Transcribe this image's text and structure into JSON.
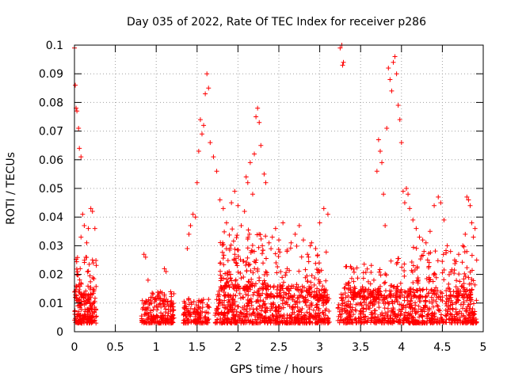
{
  "chart_data": {
    "type": "scatter",
    "title": "Day 035 of 2022, Rate Of TEC Index for receiver p286",
    "xlabel": "GPS time / hours",
    "ylabel": "ROTI / TECUs",
    "xlim": [
      0,
      5
    ],
    "ylim": [
      0,
      0.1
    ],
    "xticks": [
      0,
      0.5,
      1,
      1.5,
      2,
      2.5,
      3,
      3.5,
      4,
      4.5,
      5
    ],
    "xtick_labels": [
      "0",
      "0.5",
      "1",
      "1.5",
      "2",
      "2.5",
      "3",
      "3.5",
      "4",
      "4.5",
      "5"
    ],
    "yticks": [
      0,
      0.01,
      0.02,
      0.03,
      0.04,
      0.05,
      0.06,
      0.07,
      0.08,
      0.09,
      0.1
    ],
    "ytick_labels": [
      "0",
      "0.01",
      "0.02",
      "0.03",
      "0.04",
      "0.05",
      "0.06",
      "0.07",
      "0.08",
      "0.09",
      "0.1"
    ],
    "grid": true,
    "marker": "+",
    "color": "#ff0000",
    "series": [
      {
        "name": "p286",
        "points": [
          [
            0.0,
            0.099
          ],
          [
            0.01,
            0.086
          ],
          [
            0.02,
            0.078
          ],
          [
            0.03,
            0.077
          ],
          [
            0.05,
            0.071
          ],
          [
            0.06,
            0.064
          ],
          [
            0.08,
            0.061
          ],
          [
            0.01,
            0.012
          ],
          [
            0.02,
            0.016
          ],
          [
            0.03,
            0.02
          ],
          [
            0.04,
            0.009
          ],
          [
            0.05,
            0.007
          ],
          [
            0.06,
            0.011
          ],
          [
            0.07,
            0.022
          ],
          [
            0.08,
            0.033
          ],
          [
            0.1,
            0.041
          ],
          [
            0.12,
            0.037
          ],
          [
            0.14,
            0.026
          ],
          [
            0.15,
            0.031
          ],
          [
            0.17,
            0.036
          ],
          [
            0.2,
            0.043
          ],
          [
            0.22,
            0.042
          ],
          [
            0.23,
            0.024
          ],
          [
            0.25,
            0.036
          ],
          [
            0.12,
            0.006
          ],
          [
            0.16,
            0.005
          ],
          [
            0.2,
            0.009
          ],
          [
            0.24,
            0.007
          ],
          [
            0.85,
            0.027
          ],
          [
            0.87,
            0.026
          ],
          [
            0.9,
            0.018
          ],
          [
            0.95,
            0.012
          ],
          [
            1.0,
            0.011
          ],
          [
            1.05,
            0.014
          ],
          [
            1.1,
            0.022
          ],
          [
            1.12,
            0.021
          ],
          [
            1.15,
            0.009
          ],
          [
            1.2,
            0.006
          ],
          [
            1.38,
            0.029
          ],
          [
            1.4,
            0.034
          ],
          [
            1.42,
            0.037
          ],
          [
            1.45,
            0.041
          ],
          [
            1.48,
            0.04
          ],
          [
            1.5,
            0.052
          ],
          [
            1.52,
            0.063
          ],
          [
            1.54,
            0.074
          ],
          [
            1.56,
            0.069
          ],
          [
            1.58,
            0.072
          ],
          [
            1.6,
            0.083
          ],
          [
            1.62,
            0.09
          ],
          [
            1.64,
            0.085
          ],
          [
            1.66,
            0.066
          ],
          [
            1.7,
            0.061
          ],
          [
            1.74,
            0.056
          ],
          [
            1.78,
            0.046
          ],
          [
            1.82,
            0.043
          ],
          [
            1.86,
            0.038
          ],
          [
            1.92,
            0.045
          ],
          [
            1.96,
            0.049
          ],
          [
            2.0,
            0.044
          ],
          [
            2.04,
            0.037
          ],
          [
            2.08,
            0.042
          ],
          [
            2.1,
            0.054
          ],
          [
            2.12,
            0.052
          ],
          [
            2.15,
            0.059
          ],
          [
            2.18,
            0.048
          ],
          [
            2.2,
            0.062
          ],
          [
            2.22,
            0.075
          ],
          [
            2.24,
            0.078
          ],
          [
            2.26,
            0.073
          ],
          [
            2.28,
            0.065
          ],
          [
            2.32,
            0.055
          ],
          [
            2.34,
            0.052
          ],
          [
            2.38,
            0.031
          ],
          [
            2.42,
            0.033
          ],
          [
            2.46,
            0.036
          ],
          [
            2.5,
            0.032
          ],
          [
            2.55,
            0.038
          ],
          [
            2.6,
            0.028
          ],
          [
            2.65,
            0.031
          ],
          [
            2.7,
            0.034
          ],
          [
            2.75,
            0.037
          ],
          [
            2.8,
            0.032
          ],
          [
            2.85,
            0.027
          ],
          [
            2.9,
            0.031
          ],
          [
            2.95,
            0.029
          ],
          [
            3.0,
            0.038
          ],
          [
            3.05,
            0.043
          ],
          [
            3.1,
            0.041
          ],
          [
            3.25,
            0.099
          ],
          [
            3.27,
            0.1
          ],
          [
            3.29,
            0.094
          ],
          [
            3.28,
            0.093
          ],
          [
            3.7,
            0.056
          ],
          [
            3.72,
            0.067
          ],
          [
            3.74,
            0.063
          ],
          [
            3.76,
            0.059
          ],
          [
            3.78,
            0.048
          ],
          [
            3.8,
            0.037
          ],
          [
            3.82,
            0.071
          ],
          [
            3.84,
            0.092
          ],
          [
            3.86,
            0.088
          ],
          [
            3.88,
            0.084
          ],
          [
            3.9,
            0.094
          ],
          [
            3.92,
            0.096
          ],
          [
            3.94,
            0.09
          ],
          [
            3.96,
            0.079
          ],
          [
            3.98,
            0.074
          ],
          [
            4.0,
            0.066
          ],
          [
            4.02,
            0.049
          ],
          [
            4.04,
            0.045
          ],
          [
            4.06,
            0.05
          ],
          [
            4.08,
            0.048
          ],
          [
            4.1,
            0.043
          ],
          [
            4.14,
            0.039
          ],
          [
            4.18,
            0.036
          ],
          [
            4.22,
            0.033
          ],
          [
            4.26,
            0.032
          ],
          [
            4.3,
            0.031
          ],
          [
            4.35,
            0.035
          ],
          [
            4.4,
            0.044
          ],
          [
            4.45,
            0.047
          ],
          [
            4.48,
            0.045
          ],
          [
            4.52,
            0.039
          ],
          [
            4.56,
            0.03
          ],
          [
            4.6,
            0.028
          ],
          [
            4.65,
            0.025
          ],
          [
            4.7,
            0.027
          ],
          [
            4.75,
            0.03
          ],
          [
            4.78,
            0.034
          ],
          [
            4.8,
            0.047
          ],
          [
            4.82,
            0.046
          ],
          [
            4.84,
            0.044
          ],
          [
            4.86,
            0.038
          ],
          [
            4.88,
            0.033
          ],
          [
            4.9,
            0.036
          ],
          [
            4.92,
            0.025
          ]
        ]
      }
    ],
    "dense_bands": [
      {
        "x_start": 0.0,
        "x_end": 0.27,
        "y_low": 0.003,
        "y_high": 0.013,
        "count": 160
      },
      {
        "x_start": 0.82,
        "x_end": 1.22,
        "y_low": 0.003,
        "y_high": 0.014,
        "count": 200
      },
      {
        "x_start": 1.33,
        "x_end": 1.65,
        "y_low": 0.003,
        "y_high": 0.012,
        "count": 140
      },
      {
        "x_start": 1.72,
        "x_end": 3.12,
        "y_low": 0.003,
        "y_high": 0.016,
        "count": 650
      },
      {
        "x_start": 3.22,
        "x_end": 4.92,
        "y_low": 0.003,
        "y_high": 0.015,
        "count": 700
      },
      {
        "x_start": 1.78,
        "x_end": 2.35,
        "y_low": 0.015,
        "y_high": 0.036,
        "count": 160
      },
      {
        "x_start": 2.35,
        "x_end": 3.08,
        "y_low": 0.012,
        "y_high": 0.03,
        "count": 110
      },
      {
        "x_start": 3.3,
        "x_end": 3.9,
        "y_low": 0.012,
        "y_high": 0.025,
        "count": 90
      },
      {
        "x_start": 3.9,
        "x_end": 4.9,
        "y_low": 0.012,
        "y_high": 0.03,
        "count": 150
      },
      {
        "x_start": 0.0,
        "x_end": 0.27,
        "y_low": 0.013,
        "y_high": 0.026,
        "count": 50
      }
    ]
  }
}
